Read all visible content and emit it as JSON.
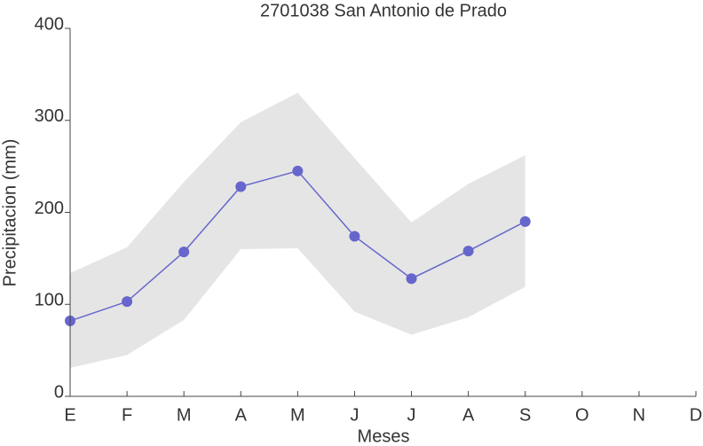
{
  "chart_data": {
    "type": "line",
    "title": "2701038 San Antonio de Prado",
    "x_label": "Meses",
    "y_label": "Precipitacion (mm)",
    "categories": [
      "E",
      "F",
      "M",
      "A",
      "M",
      "J",
      "J",
      "A",
      "S",
      "O",
      "N",
      "D"
    ],
    "series": [
      {
        "color": "#6666cc",
        "values": [
          82,
          103,
          157,
          228,
          245,
          174,
          128,
          158,
          190,
          null,
          null,
          null
        ]
      }
    ],
    "band": {
      "color": "#e5e5e5",
      "upper": [
        134,
        162,
        233,
        298,
        330,
        259,
        189,
        231,
        262,
        null,
        null,
        null
      ],
      "lower": [
        31,
        45,
        83,
        160,
        161,
        92,
        67,
        86,
        119,
        null,
        null,
        null
      ]
    },
    "ylim": [
      0,
      400
    ],
    "yticks": [
      0,
      100,
      200,
      300,
      400
    ]
  }
}
